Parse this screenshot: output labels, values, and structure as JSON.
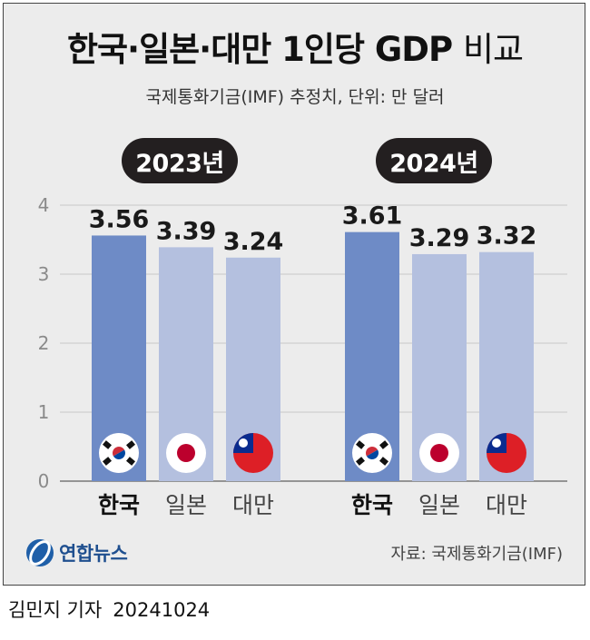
{
  "title": {
    "main": "한국·일본·대만 1인당 GDP",
    "suffix": "비교"
  },
  "subtitle": "국제통화기금(IMF) 추정치, 단위: 만 달러",
  "source": "자료: 국제통화기금(IMF)",
  "logo_text": "연합뉴스",
  "byline": {
    "reporter": "김민지 기자",
    "date": "20241024"
  },
  "colors": {
    "korea_bar": "#6e8bc6",
    "other_bar": "#b4c0df",
    "badge": "#231f20",
    "background": "#ececec"
  },
  "chart_data": {
    "type": "bar",
    "ylim": [
      0,
      4
    ],
    "yticks": [
      "0",
      "1",
      "2",
      "3",
      "4"
    ],
    "grid": true,
    "groups": [
      {
        "label": "2023년",
        "categories": [
          "한국",
          "일본",
          "대만"
        ],
        "values": [
          3.56,
          3.39,
          3.24
        ],
        "value_labels": [
          "3.56",
          "3.39",
          "3.24"
        ]
      },
      {
        "label": "2024년",
        "categories": [
          "한국",
          "일본",
          "대만"
        ],
        "values": [
          3.61,
          3.29,
          3.32
        ],
        "value_labels": [
          "3.61",
          "3.29",
          "3.32"
        ]
      }
    ],
    "flags": [
      "korea-flag-icon",
      "japan-flag-icon",
      "taiwan-flag-icon"
    ]
  }
}
